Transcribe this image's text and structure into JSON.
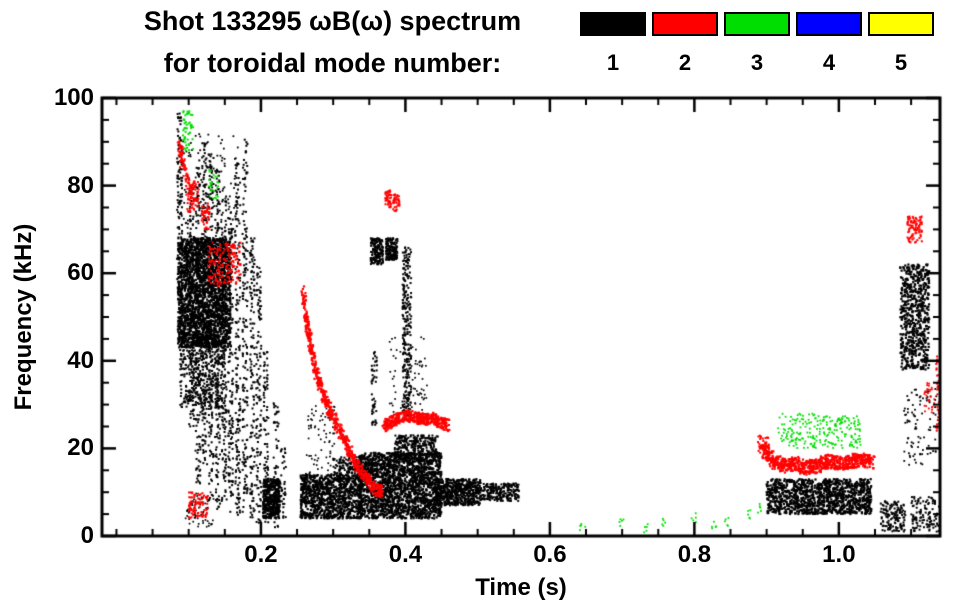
{
  "header": {
    "title": "Shot 133295 ωB(ω) spectrum",
    "subtitle": "for toroidal mode number:"
  },
  "chart_data": {
    "type": "scatter",
    "title": "Shot 133295 ωB(ω) spectrum",
    "subtitle": "for toroidal mode number:",
    "xlabel": "Time (s)",
    "ylabel": "Frequency (kHz)",
    "x_range": [
      -0.02,
      1.14
    ],
    "y_range": [
      0,
      100
    ],
    "x_major_ticks": [
      0.2,
      0.4,
      0.6,
      0.8,
      1.0
    ],
    "x_tick_labels": [
      "0.2",
      "0.4",
      "0.6",
      "0.8",
      "1.0"
    ],
    "x_minor_step": 0.05,
    "y_major_ticks": [
      0,
      20,
      40,
      60,
      80,
      100
    ],
    "y_tick_labels": [
      "0",
      "20",
      "40",
      "60",
      "80",
      "100"
    ],
    "y_minor_step": 5,
    "grid": false,
    "legend_position": "top-right",
    "modes": [
      {
        "label": "1",
        "color": "#000000"
      },
      {
        "label": "2",
        "color": "#ff0000"
      },
      {
        "label": "3",
        "color": "#00dd00"
      },
      {
        "label": "4",
        "color": "#0000ff"
      },
      {
        "label": "5",
        "color": "#ffff00"
      }
    ],
    "clusters": [
      {
        "mode": 1,
        "kind": "blob",
        "t": [
          0.085,
          0.158
        ],
        "f": [
          43,
          68
        ],
        "n": 2200,
        "s": 2.2
      },
      {
        "mode": 1,
        "kind": "blob",
        "t": [
          0.088,
          0.152
        ],
        "f": [
          29,
          46
        ],
        "n": 450,
        "s": 2
      },
      {
        "mode": 1,
        "kind": "vline",
        "t": 0.0875,
        "f": [
          58,
          97
        ],
        "n": 110,
        "w": 0.0035
      },
      {
        "mode": 1,
        "kind": "blob",
        "t": [
          0.09,
          0.168
        ],
        "f": [
          68,
          92
        ],
        "n": 130,
        "s": 1.8
      },
      {
        "mode": 1,
        "kind": "vline",
        "t": 0.104,
        "f": [
          25,
          80
        ],
        "n": 120,
        "w": 0.0035
      },
      {
        "mode": 1,
        "kind": "vline",
        "t": 0.113,
        "f": [
          12,
          86
        ],
        "n": 150,
        "w": 0.0035
      },
      {
        "mode": 1,
        "kind": "vline",
        "t": 0.122,
        "f": [
          16,
          90
        ],
        "n": 150,
        "w": 0.0035
      },
      {
        "mode": 1,
        "kind": "vline",
        "t": 0.131,
        "f": [
          8,
          88
        ],
        "n": 160,
        "w": 0.0035
      },
      {
        "mode": 1,
        "kind": "vline",
        "t": 0.14,
        "f": [
          6,
          84
        ],
        "n": 160,
        "w": 0.0035
      },
      {
        "mode": 1,
        "kind": "vline",
        "t": 0.149,
        "f": [
          8,
          78
        ],
        "n": 140,
        "w": 0.0035
      },
      {
        "mode": 1,
        "kind": "vline",
        "t": 0.158,
        "f": [
          5,
          74
        ],
        "n": 140,
        "w": 0.0035
      },
      {
        "mode": 1,
        "kind": "vline",
        "t": 0.168,
        "f": [
          4,
          88
        ],
        "n": 170,
        "w": 0.0035
      },
      {
        "mode": 1,
        "kind": "vline",
        "t": 0.178,
        "f": [
          5,
          91
        ],
        "n": 170,
        "w": 0.0035
      },
      {
        "mode": 1,
        "kind": "vline",
        "t": 0.188,
        "f": [
          4,
          68
        ],
        "n": 130,
        "w": 0.0035
      },
      {
        "mode": 1,
        "kind": "vline",
        "t": 0.197,
        "f": [
          3,
          62
        ],
        "n": 120,
        "w": 0.0035
      },
      {
        "mode": 1,
        "kind": "vline",
        "t": 0.207,
        "f": [
          3,
          42
        ],
        "n": 80,
        "w": 0.0035
      },
      {
        "mode": 1,
        "kind": "vline",
        "t": 0.221,
        "f": [
          2,
          32
        ],
        "n": 60,
        "w": 0.0035
      },
      {
        "mode": 1,
        "kind": "vline",
        "t": 0.231,
        "f": [
          4,
          20
        ],
        "n": 35,
        "w": 0.0035
      },
      {
        "mode": 1,
        "kind": "blob",
        "t": [
          0.203,
          0.227
        ],
        "f": [
          4,
          13
        ],
        "n": 380,
        "s": 2.2
      },
      {
        "mode": 1,
        "kind": "blob",
        "t": [
          0.255,
          0.34
        ],
        "f": [
          4,
          14
        ],
        "n": 950,
        "s": 2.2
      },
      {
        "mode": 1,
        "kind": "blob",
        "t": [
          0.3,
          0.336
        ],
        "f": [
          13,
          18
        ],
        "n": 130,
        "s": 2
      },
      {
        "mode": 1,
        "kind": "blob",
        "t": [
          0.335,
          0.45
        ],
        "f": [
          4,
          19
        ],
        "n": 1900,
        "s": 2.2
      },
      {
        "mode": 1,
        "kind": "blob",
        "t": [
          0.385,
          0.445
        ],
        "f": [
          17,
          23
        ],
        "n": 330,
        "s": 2
      },
      {
        "mode": 1,
        "kind": "blob",
        "t": [
          0.352,
          0.369
        ],
        "f": [
          62,
          68
        ],
        "n": 170,
        "s": 2
      },
      {
        "mode": 1,
        "kind": "blob",
        "t": [
          0.373,
          0.389
        ],
        "f": [
          63,
          68
        ],
        "n": 150,
        "s": 2
      },
      {
        "mode": 1,
        "kind": "vline",
        "t": 0.402,
        "f": [
          27,
          66
        ],
        "n": 260,
        "w": 0.006
      },
      {
        "mode": 1,
        "kind": "blob",
        "t": [
          0.44,
          0.505
        ],
        "f": [
          7,
          13
        ],
        "n": 520,
        "s": 2.2
      },
      {
        "mode": 1,
        "kind": "blob",
        "t": [
          0.505,
          0.557
        ],
        "f": [
          8,
          12
        ],
        "n": 230,
        "s": 2
      },
      {
        "mode": 1,
        "kind": "vline",
        "t": 0.357,
        "f": [
          24,
          42
        ],
        "n": 50,
        "w": 0.004
      },
      {
        "mode": 1,
        "kind": "blob",
        "t": [
          0.378,
          0.43
        ],
        "f": [
          28,
          46
        ],
        "n": 90,
        "s": 1.7
      },
      {
        "mode": 1,
        "kind": "blob",
        "t": [
          0.262,
          0.302
        ],
        "f": [
          14,
          30
        ],
        "n": 70,
        "s": 1.7
      },
      {
        "mode": 1,
        "kind": "blob",
        "t": [
          0.095,
          0.135
        ],
        "f": [
          2,
          10
        ],
        "n": 60,
        "s": 1.7
      },
      {
        "mode": 1,
        "kind": "blob",
        "t": [
          0.9,
          1.045
        ],
        "f": [
          5,
          13
        ],
        "n": 1150,
        "s": 2.2
      },
      {
        "mode": 1,
        "kind": "blob",
        "t": [
          1.085,
          1.125
        ],
        "f": [
          38,
          62
        ],
        "n": 620,
        "s": 2.2
      },
      {
        "mode": 1,
        "kind": "blob",
        "t": [
          1.09,
          1.135
        ],
        "f": [
          16,
          34
        ],
        "n": 90,
        "s": 1.8
      },
      {
        "mode": 1,
        "kind": "blob",
        "t": [
          1.058,
          1.092
        ],
        "f": [
          1,
          8
        ],
        "n": 140,
        "s": 2
      },
      {
        "mode": 1,
        "kind": "blob",
        "t": [
          1.1,
          1.145
        ],
        "f": [
          1,
          9
        ],
        "n": 130,
        "s": 2
      },
      {
        "mode": 1,
        "kind": "vline",
        "t": 1.146,
        "f": [
          8,
          45
        ],
        "n": 80,
        "w": 0.004
      },
      {
        "mode": 2,
        "kind": "curve",
        "pts": [
          [
            0.086,
            90
          ],
          [
            0.091,
            86
          ],
          [
            0.096,
            82
          ],
          [
            0.101,
            79
          ]
        ],
        "n": 70,
        "jt": 0.003,
        "jf": 2,
        "s": 2
      },
      {
        "mode": 2,
        "kind": "blob",
        "t": [
          0.098,
          0.114
        ],
        "f": [
          74,
          81
        ],
        "n": 70,
        "s": 2
      },
      {
        "mode": 2,
        "kind": "blob",
        "t": [
          0.118,
          0.129
        ],
        "f": [
          70,
          76
        ],
        "n": 45,
        "s": 2
      },
      {
        "mode": 2,
        "kind": "blob",
        "t": [
          0.127,
          0.172
        ],
        "f": [
          57,
          67
        ],
        "n": 170,
        "s": 2
      },
      {
        "mode": 2,
        "kind": "blob",
        "t": [
          0.1,
          0.127
        ],
        "f": [
          4,
          10
        ],
        "n": 90,
        "s": 2
      },
      {
        "mode": 2,
        "kind": "curve",
        "pts": [
          [
            0.258,
            56
          ],
          [
            0.263,
            49
          ],
          [
            0.268,
            44
          ],
          [
            0.274,
            39
          ],
          [
            0.281,
            35
          ],
          [
            0.289,
            31
          ],
          [
            0.297,
            28
          ],
          [
            0.306,
            25
          ],
          [
            0.315,
            22
          ],
          [
            0.324,
            19
          ],
          [
            0.333,
            16
          ],
          [
            0.342,
            14
          ],
          [
            0.351,
            12
          ],
          [
            0.36,
            10.5
          ],
          [
            0.369,
            10
          ]
        ],
        "n": 650,
        "jt": 0.003,
        "jf": 1.4,
        "s": 2.2
      },
      {
        "mode": 2,
        "kind": "blob",
        "t": [
          0.372,
          0.381
        ],
        "f": [
          75,
          79
        ],
        "n": 45,
        "s": 2
      },
      {
        "mode": 2,
        "kind": "blob",
        "t": [
          0.383,
          0.392
        ],
        "f": [
          74,
          78
        ],
        "n": 40,
        "s": 2
      },
      {
        "mode": 2,
        "kind": "curve",
        "pts": [
          [
            0.37,
            25
          ],
          [
            0.381,
            26
          ],
          [
            0.392,
            27
          ],
          [
            0.403,
            27.5
          ],
          [
            0.414,
            27
          ],
          [
            0.425,
            26.5
          ],
          [
            0.436,
            27
          ],
          [
            0.447,
            26
          ],
          [
            0.458,
            25.2
          ]
        ],
        "n": 430,
        "jt": 0.004,
        "jf": 1.3,
        "s": 2.2
      },
      {
        "mode": 2,
        "kind": "curve",
        "pts": [
          [
            0.895,
            20
          ],
          [
            0.91,
            17
          ],
          [
            0.925,
            16
          ],
          [
            0.94,
            16.5
          ],
          [
            0.955,
            15.5
          ],
          [
            0.97,
            16
          ],
          [
            0.985,
            17
          ],
          [
            1.0,
            16.5
          ],
          [
            1.015,
            17
          ],
          [
            1.03,
            17.5
          ],
          [
            1.045,
            17
          ]
        ],
        "n": 720,
        "jt": 0.005,
        "jf": 1.6,
        "s": 2.2
      },
      {
        "mode": 2,
        "kind": "blob",
        "t": [
          0.888,
          0.904
        ],
        "f": [
          19,
          23
        ],
        "n": 40,
        "s": 2
      },
      {
        "mode": 2,
        "kind": "blob",
        "t": [
          1.095,
          1.115
        ],
        "f": [
          67,
          73
        ],
        "n": 90,
        "s": 2
      },
      {
        "mode": 2,
        "kind": "vline",
        "t": 1.138,
        "f": [
          24,
          42
        ],
        "n": 55,
        "w": 0.004
      },
      {
        "mode": 2,
        "kind": "blob",
        "t": [
          1.118,
          1.134
        ],
        "f": [
          28,
          35
        ],
        "n": 30,
        "s": 1.8
      },
      {
        "mode": 3,
        "kind": "blob",
        "t": [
          0.092,
          0.106
        ],
        "f": [
          88,
          97
        ],
        "n": 50,
        "s": 2
      },
      {
        "mode": 3,
        "kind": "blob",
        "t": [
          0.128,
          0.141
        ],
        "f": [
          77,
          84
        ],
        "n": 28,
        "s": 1.8
      },
      {
        "mode": 3,
        "kind": "blob",
        "t": [
          0.915,
          1.03
        ],
        "f": [
          20,
          28
        ],
        "n": 230,
        "s": 1.8
      },
      {
        "mode": 3,
        "kind": "points",
        "pts": [
          [
            0.645,
            2.5
          ],
          [
            0.7,
            3
          ],
          [
            0.733,
            2
          ],
          [
            0.758,
            3.5
          ],
          [
            0.8,
            4
          ],
          [
            0.828,
            2.5
          ],
          [
            0.845,
            3
          ],
          [
            0.876,
            5
          ],
          [
            0.89,
            6.5
          ]
        ],
        "per": 5,
        "jt": 0.004,
        "jf": 1.2,
        "s": 1.8
      }
    ]
  }
}
